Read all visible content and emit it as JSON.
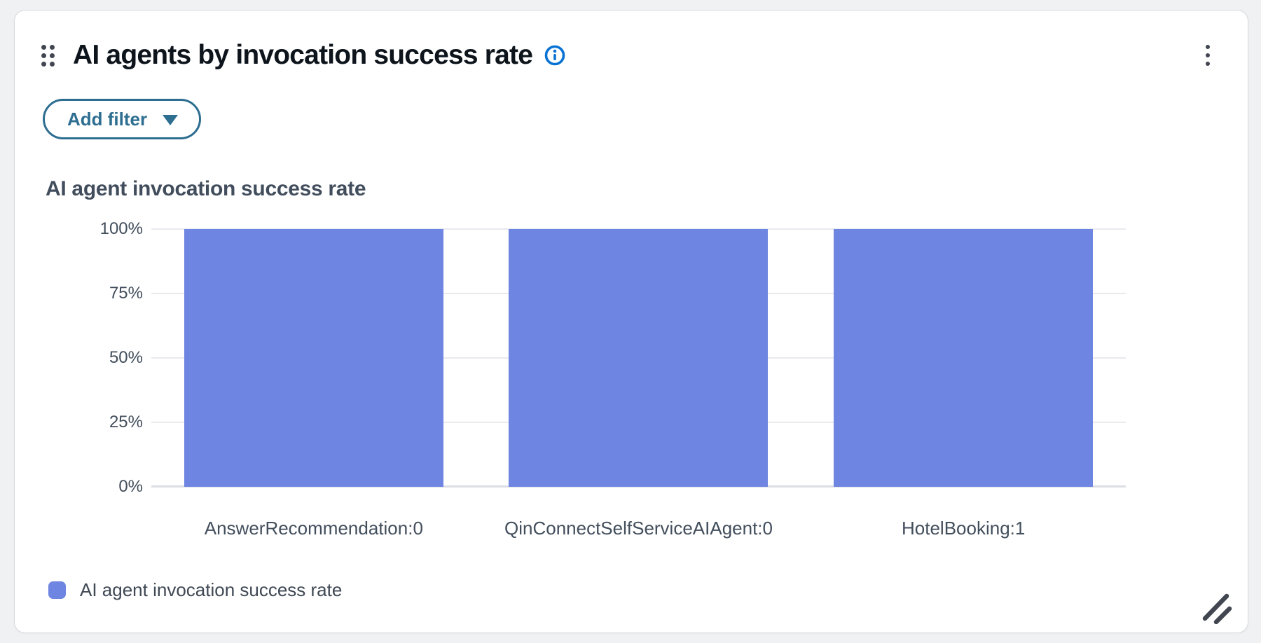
{
  "widget": {
    "title": "AI agents by invocation success rate",
    "filter_button": {
      "label": "Add filter"
    }
  },
  "icons": {
    "drag_handle": "drag-handle-icon (6 dots)",
    "info": "info-icon (circled i)",
    "kebab": "kebab-menu-icon (3 vertical dots)",
    "caret": "caret-down-icon (filled triangle)",
    "resize": "resize-handle-icon (double diagonal lines)"
  },
  "colors": {
    "accent_blue": "#0972d3",
    "teal_action": "#2d6e91",
    "bar_fill": "#6e85e1",
    "text_primary": "#0d141b",
    "text_secondary": "#424e5c",
    "gridline": "#e8eaee",
    "axis_line": "#dcdee3",
    "card_bg": "#ffffff",
    "page_bg": "#f0f1f3"
  },
  "chart_data": {
    "type": "bar",
    "title": "AI agent invocation success rate",
    "categories": [
      "AnswerRecommendation:0",
      "QinConnectSelfServiceAIAgent:0",
      "HotelBooking:1"
    ],
    "series": [
      {
        "name": "AI agent invocation success rate",
        "values": [
          100,
          100,
          100
        ]
      }
    ],
    "value_unit": "%",
    "ylim": [
      0,
      100
    ],
    "yticks": [
      "0%",
      "25%",
      "50%",
      "75%",
      "100%"
    ],
    "grid": true,
    "legend_position": "bottom",
    "bar_color": "#6e85e1"
  },
  "legend": {
    "label": "AI agent invocation success rate"
  }
}
